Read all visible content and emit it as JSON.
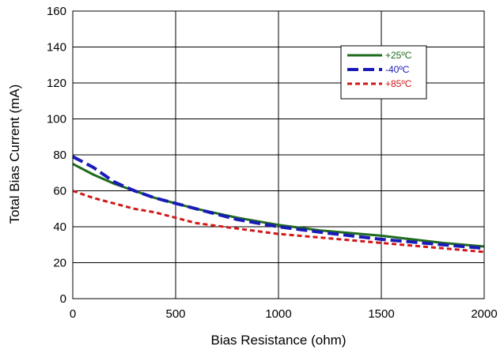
{
  "chart_data": {
    "type": "line",
    "title": "",
    "xlabel": "Bias Resistance (ohm)",
    "ylabel": "Total Bias Current (mA)",
    "xlim": [
      0,
      2000
    ],
    "ylim": [
      0,
      160
    ],
    "xticks": [
      0,
      500,
      1000,
      1500,
      2000
    ],
    "yticks": [
      0,
      20,
      40,
      60,
      80,
      100,
      120,
      140,
      160
    ],
    "grid": true,
    "legend_position": "top-right",
    "series": [
      {
        "name": "+25ºC",
        "color": "#1e6b1e",
        "style": "solid",
        "x": [
          0,
          100,
          200,
          300,
          400,
          500,
          600,
          800,
          1000,
          1200,
          1500,
          1800,
          2000
        ],
        "y": [
          75,
          69,
          64,
          60,
          56,
          53,
          50,
          45,
          41,
          38,
          35,
          31,
          29
        ]
      },
      {
        "name": "-40ºC",
        "color": "#1a1ab8",
        "style": "dashed",
        "x": [
          0,
          100,
          200,
          300,
          400,
          500,
          600,
          800,
          1000,
          1200,
          1500,
          1800,
          2000
        ],
        "y": [
          79,
          73,
          65,
          60,
          56,
          53,
          50,
          44,
          40,
          37,
          33,
          30,
          28
        ]
      },
      {
        "name": "+85ºC",
        "color": "#d01818",
        "style": "dotted",
        "x": [
          0,
          100,
          200,
          300,
          400,
          500,
          600,
          800,
          1000,
          1200,
          1500,
          1800,
          2000
        ],
        "y": [
          60,
          56,
          53,
          50,
          48,
          45,
          42,
          39,
          36,
          34,
          31,
          28,
          26
        ]
      }
    ]
  }
}
